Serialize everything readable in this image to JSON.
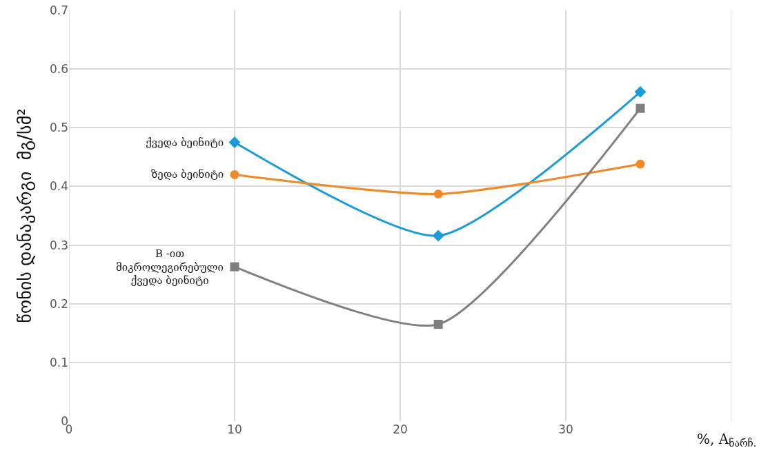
{
  "chart_data": {
    "type": "line",
    "ylabel": "წონის დანაკარგი  მგ/სმ²",
    "xlabel": "%, A$_{ნარჩ.}$",
    "xlim": [
      0,
      40
    ],
    "xticks": [
      0,
      10,
      20,
      30,
      {
        "value": 40,
        "label": null
      }
    ],
    "ylim": [
      0,
      0.7
    ],
    "yticks": [
      0,
      0.1,
      0.2,
      0.3,
      0.4,
      0.5,
      0.6,
      0.7
    ],
    "grid": true,
    "legend": false,
    "x": [
      10,
      22.3,
      34.5
    ],
    "series": [
      {
        "name": "ქვედა ბეინიტი",
        "color": "#1a9ad6",
        "marker": "diamond",
        "values": [
          0.475,
          0.316,
          0.561
        ]
      },
      {
        "name": "ზედა ბეინიტი",
        "color": "#f0892a",
        "marker": "circle",
        "values": [
          0.42,
          0.387,
          0.438
        ]
      },
      {
        "name": "B -ით\nმიკროლეგირებული\nქვედა ბეინიტი",
        "color": "#7f7f7f",
        "marker": "square",
        "values": [
          0.263,
          0.165,
          0.533
        ]
      }
    ]
  }
}
